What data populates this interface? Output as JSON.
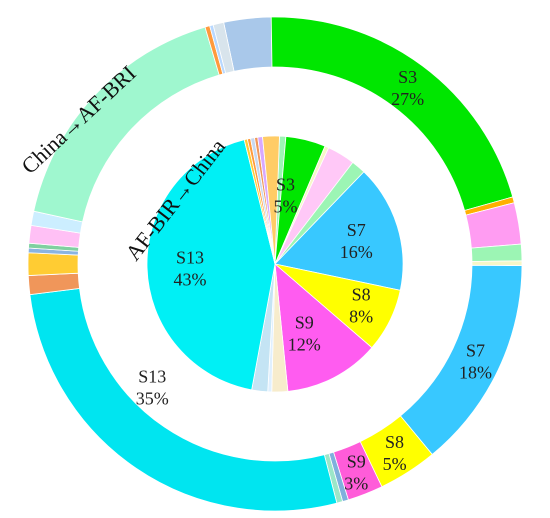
{
  "chart_data": [
    {
      "type": "pie",
      "title": "China→AF-BRI",
      "ring": "outer",
      "slices": [
        {
          "name": "",
          "value": 4.0,
          "color": "#a9c8ea"
        },
        {
          "name": "S3",
          "value": 27,
          "label": "27%",
          "color": "#00e600"
        },
        {
          "name": "",
          "value": 0.5,
          "color": "#ffb000"
        },
        {
          "name": "",
          "value": 3.5,
          "color": "#ff9cf2"
        },
        {
          "name": "",
          "value": 1.4,
          "color": "#9cf5b4"
        },
        {
          "name": "",
          "value": 0.4,
          "color": "#f7f7c8"
        },
        {
          "name": "S7",
          "value": 18,
          "label": "18%",
          "color": "#38c8ff"
        },
        {
          "name": "S8",
          "value": 5,
          "label": "5%",
          "color": "#ffff00"
        },
        {
          "name": "S9",
          "value": 3,
          "label": "3%",
          "color": "#ff5cd9"
        },
        {
          "name": "",
          "value": 0.5,
          "color": "#7fb0dd"
        },
        {
          "name": "",
          "value": 0.5,
          "color": "#9ce6c8"
        },
        {
          "name": "S13",
          "value": 35,
          "label": "35%",
          "color": "#00e5f0"
        },
        {
          "name": "",
          "value": 1.6,
          "color": "#f0965a"
        },
        {
          "name": "",
          "value": 1.9,
          "color": "#ffcc33"
        },
        {
          "name": "",
          "value": 0.4,
          "color": "#8ab4e0"
        },
        {
          "name": "",
          "value": 0.4,
          "color": "#7fd0a0"
        },
        {
          "name": "",
          "value": 1.5,
          "color": "#ffc0f5"
        },
        {
          "name": "",
          "value": 1.2,
          "color": "#cceeff"
        },
        {
          "name": "",
          "value": 22.0,
          "color": "#9ff7cf"
        },
        {
          "name": "",
          "value": 0.4,
          "color": "#ff9a3c"
        },
        {
          "name": "",
          "value": 0.3,
          "color": "#b8d8ff"
        },
        {
          "name": "",
          "value": 0.9,
          "color": "#d8e4ec"
        }
      ]
    },
    {
      "type": "pie",
      "title": "AF-BIR→China",
      "ring": "inner",
      "slices": [
        {
          "name": "",
          "value": 0.8,
          "color": "#9cf5b4"
        },
        {
          "name": "S3",
          "value": 5,
          "label": "5%",
          "color": "#00e600"
        },
        {
          "name": "",
          "value": 0.5,
          "color": "#f7f7c8"
        },
        {
          "name": "",
          "value": 3.5,
          "color": "#ffc8f7"
        },
        {
          "name": "",
          "value": 1.8,
          "color": "#9cf5b4"
        },
        {
          "name": "S7",
          "value": 16,
          "label": "16%",
          "color": "#38c8ff"
        },
        {
          "name": "S8",
          "value": 8,
          "label": "8%",
          "color": "#ffff00"
        },
        {
          "name": "S9",
          "value": 12,
          "label": "12%",
          "color": "#ff5cf0"
        },
        {
          "name": "",
          "value": 2.0,
          "color": "#f7eccc"
        },
        {
          "name": "",
          "value": 0.5,
          "color": "#e0f0ff"
        },
        {
          "name": "",
          "value": 2.0,
          "color": "#c4e4f4"
        },
        {
          "name": "S13",
          "value": 43,
          "label": "43%",
          "color": "#00f0f5"
        },
        {
          "name": "",
          "value": 0.4,
          "color": "#ffcc33"
        },
        {
          "name": "",
          "value": 0.4,
          "color": "#ff9a3c"
        },
        {
          "name": "",
          "value": 0.5,
          "color": "#c8d8f0"
        },
        {
          "name": "",
          "value": 0.4,
          "color": "#f0965a"
        },
        {
          "name": "",
          "value": 0.6,
          "color": "#d8a8ff"
        },
        {
          "name": "",
          "value": 2.1,
          "color": "#ffcc66"
        }
      ]
    }
  ]
}
